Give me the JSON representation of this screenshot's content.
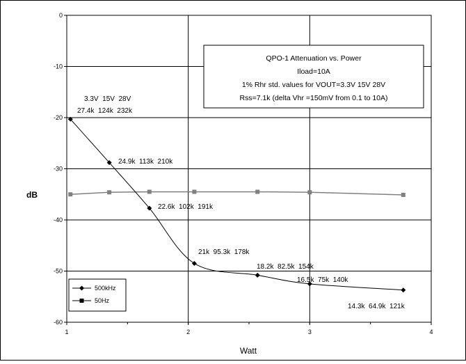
{
  "chart_data": {
    "type": "line",
    "title_lines": [
      "QPO-1 Attenuation vs. Power",
      "Iload=10A",
      "1% Rhr std. values for VOUT=3.3V 15V 28V",
      "Rss=7.1k (delta Vhr =150mV from 0.1 to 10A)"
    ],
    "xlabel": "Watt",
    "ylabel": "dB",
    "xlim": [
      1,
      4
    ],
    "ylim": [
      -60,
      0
    ],
    "x_ticks": [
      "1",
      "2",
      "3",
      "4"
    ],
    "y_ticks": [
      "0",
      "-10",
      "-20",
      "-30",
      "-40",
      "-50",
      "-60"
    ],
    "grid": true,
    "legend_position": "bottom-left",
    "series": [
      {
        "name": "500kHz",
        "color": "#000000",
        "marker": "diamond",
        "x": [
          1.03,
          1.35,
          1.68,
          2.05,
          2.57,
          3.0,
          3.77
        ],
        "y": [
          -20.3,
          -28.8,
          -37.7,
          -48.5,
          -50.8,
          -52.5,
          -53.7
        ]
      },
      {
        "name": "50Hz",
        "color": "#808080",
        "marker": "square",
        "x": [
          1.03,
          1.35,
          1.68,
          2.05,
          2.57,
          3.0,
          3.77
        ],
        "y": [
          -35.0,
          -34.6,
          -34.5,
          -34.5,
          -34.5,
          -34.6,
          -35.1
        ]
      }
    ],
    "annotations": [
      "3.3V  15V  28V",
      "27.4k  124k  232k",
      "24.9k  113k  210k",
      "22.6k  102k  191k",
      "21k  95.3k  178k",
      "18.2k  82.5k  154k",
      "16.5k  75k  140k",
      "14.3k  64.9k  121k"
    ],
    "colors": {
      "grid": "#000000",
      "frame": "#000000",
      "background": "#ffffff"
    }
  }
}
